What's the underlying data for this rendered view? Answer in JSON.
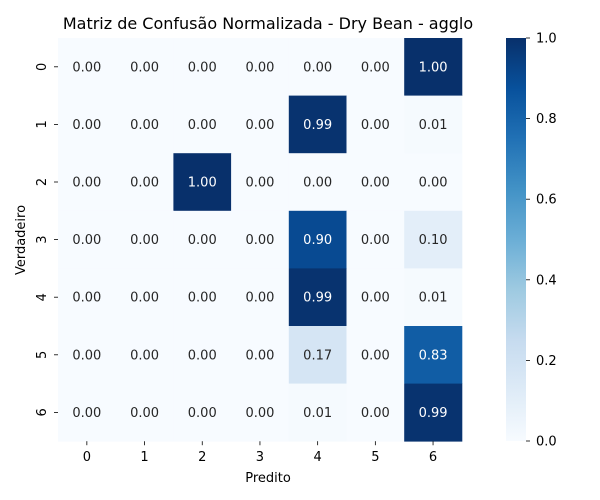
{
  "chart_data": {
    "type": "heatmap",
    "title": "Matriz de Confusão Normalizada - Dry Bean - agglo",
    "xlabel": "Predito",
    "ylabel": "Verdadeiro",
    "x_tick_labels": [
      "0",
      "1",
      "2",
      "3",
      "4",
      "5",
      "6"
    ],
    "y_tick_labels": [
      "0",
      "1",
      "2",
      "3",
      "4",
      "5",
      "6"
    ],
    "values": [
      [
        0.0,
        0.0,
        0.0,
        0.0,
        0.0,
        0.0,
        1.0
      ],
      [
        0.0,
        0.0,
        0.0,
        0.0,
        0.99,
        0.0,
        0.01
      ],
      [
        0.0,
        0.0,
        1.0,
        0.0,
        0.0,
        0.0,
        0.0
      ],
      [
        0.0,
        0.0,
        0.0,
        0.0,
        0.9,
        0.0,
        0.1
      ],
      [
        0.0,
        0.0,
        0.0,
        0.0,
        0.99,
        0.0,
        0.01
      ],
      [
        0.0,
        0.0,
        0.0,
        0.0,
        0.17,
        0.0,
        0.83
      ],
      [
        0.0,
        0.0,
        0.0,
        0.0,
        0.01,
        0.0,
        0.99
      ]
    ],
    "value_format": "0.00",
    "colormap": "Blues",
    "vmin": 0.0,
    "vmax": 1.0,
    "colorbar_ticks": [
      "0.0",
      "0.2",
      "0.4",
      "0.6",
      "0.8",
      "1.0"
    ]
  }
}
